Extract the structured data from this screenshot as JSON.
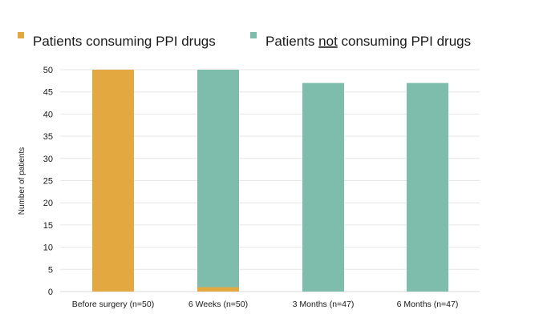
{
  "chart_data": {
    "type": "bar",
    "stacked": true,
    "categories": [
      "Before surgery (n=50)",
      "6 Weeks (n=50)",
      "3 Months (n=47)",
      "6 Months (n=47)"
    ],
    "series": [
      {
        "name": "Patients consuming PPI drugs",
        "color": "#E3A83F",
        "values": [
          50,
          1,
          0,
          0
        ]
      },
      {
        "name": "Patients not consuming PPI drugs",
        "color": "#7EBCAC",
        "values": [
          0,
          49,
          47,
          47
        ]
      }
    ],
    "legend": {
      "position": "top-left",
      "entries": [
        {
          "parts": [
            {
              "text": "Patients consuming PPI drugs",
              "underline": false
            }
          ]
        },
        {
          "parts": [
            {
              "text": "Patients ",
              "underline": false
            },
            {
              "text": "not",
              "underline": true
            },
            {
              "text": " consuming PPI drugs",
              "underline": false
            }
          ]
        }
      ]
    },
    "ylabel": "Number of patients",
    "xlabel": "",
    "ylim": [
      0,
      50
    ],
    "yticks": [
      0,
      5,
      10,
      15,
      20,
      25,
      30,
      35,
      40,
      45,
      50
    ],
    "grid": true
  }
}
